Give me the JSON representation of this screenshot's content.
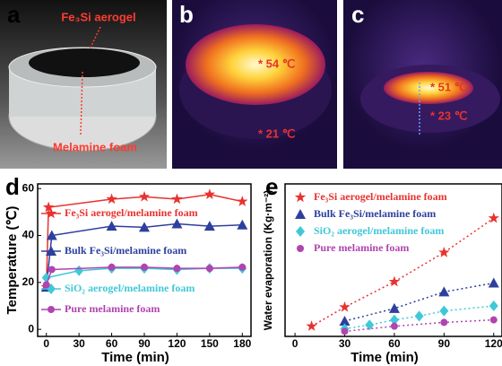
{
  "photos": [
    {
      "label": "a",
      "texts": [
        "Fe₃Si aerogel",
        "Melamine foam"
      ]
    },
    {
      "label": "b",
      "texts": [
        "* 54 ℃",
        "* 21 ℃"
      ]
    },
    {
      "label": "c",
      "texts": [
        "* 51 ℃",
        "* 23 ℃"
      ]
    }
  ],
  "chart_data": [
    {
      "type": "line",
      "label": "d",
      "line_style": "solid",
      "xlabel": "Time (min)",
      "ylabel": "Temperature (℃)",
      "xlim": [
        -8,
        188
      ],
      "xticks": [
        0,
        30,
        60,
        90,
        120,
        150,
        180
      ],
      "ylim": [
        -3,
        62
      ],
      "yticks": [
        0,
        20,
        40,
        60
      ],
      "series": [
        {
          "name": "Fe₃Si aerogel/melamine foam",
          "color": "#e8322f",
          "marker": "star",
          "x": [
            0,
            2,
            60,
            90,
            120,
            150,
            180
          ],
          "values": [
            18,
            52,
            55.5,
            56.5,
            55.5,
            57.5,
            54.5
          ]
        },
        {
          "name": "Bulk Fe₃Si/melamine foam",
          "color": "#2e3f9e",
          "marker": "triangle",
          "x": [
            0,
            5,
            60,
            90,
            120,
            150,
            180
          ],
          "values": [
            18,
            40,
            44,
            43.5,
            45,
            44,
            44.5
          ]
        },
        {
          "name": "SiO₂ aerogel/melamine foam",
          "color": "#40c8d8",
          "marker": "diamond",
          "x": [
            0,
            30,
            60,
            90,
            120,
            150,
            180
          ],
          "values": [
            22,
            25,
            26,
            26,
            25.5,
            26,
            26
          ]
        },
        {
          "name": "Pure melamine foam",
          "color": "#b044b0",
          "marker": "circle",
          "x": [
            0,
            5,
            60,
            90,
            120,
            150,
            180
          ],
          "values": [
            19,
            25.5,
            26.5,
            26.5,
            26,
            26,
            26.5
          ]
        }
      ]
    },
    {
      "type": "scatter",
      "label": "e",
      "line_style": "dotted",
      "xlabel": "Time (min)",
      "ylabel": "Water evaporation (Kg·m⁻²)",
      "xlim": [
        -6,
        125
      ],
      "xticks": [
        0,
        30,
        60,
        90,
        120
      ],
      "ylim": [
        0,
        6
      ],
      "series": [
        {
          "name": "Fe₃Si aerogel/melamine foam",
          "color": "#e8322f",
          "marker": "star",
          "x": [
            10,
            30,
            60,
            90,
            120
          ],
          "values": [
            0.4,
            1.15,
            2.15,
            3.3,
            4.65
          ]
        },
        {
          "name": "Bulk Fe₃Si/melamine foam",
          "color": "#2e3f9e",
          "marker": "triangle",
          "x": [
            30,
            60,
            90,
            120
          ],
          "values": [
            0.6,
            1.1,
            1.75,
            2.1
          ]
        },
        {
          "name": "SiO₂ aerogel/melamine foam",
          "color": "#40c8d8",
          "marker": "diamond",
          "x": [
            30,
            45,
            60,
            75,
            90,
            120
          ],
          "values": [
            0.3,
            0.45,
            0.65,
            0.8,
            1.0,
            1.2
          ]
        },
        {
          "name": "Pure melamine foam",
          "color": "#b044b0",
          "marker": "circle",
          "x": [
            30,
            60,
            90,
            120
          ],
          "values": [
            0.2,
            0.4,
            0.55,
            0.65
          ]
        }
      ]
    }
  ]
}
